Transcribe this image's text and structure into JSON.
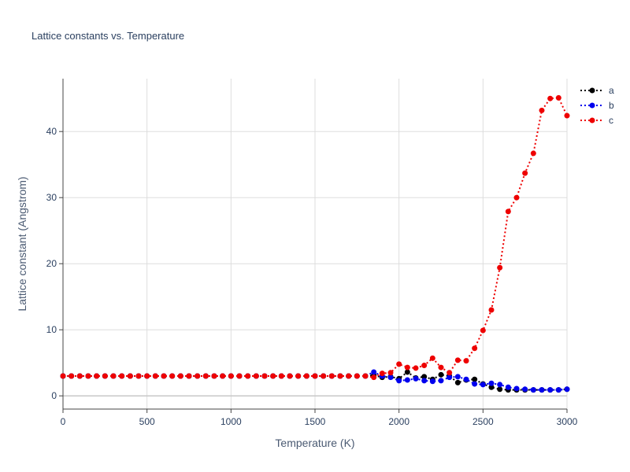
{
  "chart_data": {
    "type": "line",
    "title": "Lattice constants vs. Temperature",
    "xlabel": "Temperature (K)",
    "ylabel": "Lattice constant (Angstrom)",
    "xlim": [
      0,
      3000
    ],
    "ylim": [
      -2,
      48
    ],
    "x_ticks": [
      0,
      500,
      1000,
      1500,
      2000,
      2500,
      3000
    ],
    "x_tick_labels": [
      "0",
      "500",
      "1000",
      "1500",
      "2000",
      "2500",
      "3000"
    ],
    "y_ticks": [
      0,
      10,
      20,
      30,
      40
    ],
    "y_tick_labels": [
      "0",
      "10",
      "20",
      "30",
      "40"
    ],
    "grid": true,
    "legend_position": "top-right",
    "x": [
      0,
      50,
      100,
      150,
      200,
      250,
      300,
      350,
      400,
      450,
      500,
      550,
      600,
      650,
      700,
      750,
      800,
      850,
      900,
      950,
      1000,
      1050,
      1100,
      1150,
      1200,
      1250,
      1300,
      1350,
      1400,
      1450,
      1500,
      1550,
      1600,
      1650,
      1700,
      1750,
      1800,
      1850,
      1900,
      1950,
      2000,
      2050,
      2100,
      2150,
      2200,
      2250,
      2300,
      2350,
      2400,
      2450,
      2500,
      2550,
      2600,
      2650,
      2700,
      2750,
      2800,
      2850,
      2900,
      2950,
      3000
    ],
    "series": [
      {
        "name": "a",
        "color": "#000000",
        "values": [
          3,
          3,
          3,
          3,
          3,
          3,
          3,
          3,
          3,
          3,
          3,
          3,
          3,
          3,
          3,
          3,
          3,
          3,
          3,
          3,
          3,
          3,
          3,
          3,
          3,
          3,
          3,
          3,
          3,
          3,
          3,
          3,
          3,
          3,
          3,
          3,
          3,
          3.1,
          2.8,
          2.9,
          2.6,
          3.6,
          2.7,
          2.9,
          2.5,
          3.2,
          3.0,
          2.0,
          2.4,
          2.5,
          1.8,
          1.3,
          1.0,
          0.9,
          0.9,
          0.9,
          0.9,
          0.9,
          0.9,
          0.9,
          1.0
        ]
      },
      {
        "name": "b",
        "color": "#0000ee",
        "values": [
          3,
          3,
          3,
          3,
          3,
          3,
          3,
          3,
          3,
          3,
          3,
          3,
          3,
          3,
          3,
          3,
          3,
          3,
          3,
          3,
          3,
          3,
          3,
          3,
          3,
          3,
          3,
          3,
          3,
          3,
          3,
          3,
          3,
          3,
          3,
          3,
          3,
          3.6,
          3.0,
          2.8,
          2.3,
          2.4,
          2.6,
          2.3,
          2.2,
          2.3,
          2.8,
          2.9,
          2.5,
          1.8,
          1.7,
          1.9,
          1.7,
          1.3,
          1.1,
          1.0,
          0.9,
          0.9,
          0.9,
          0.9,
          1.0
        ]
      },
      {
        "name": "c",
        "color": "#ee0000",
        "values": [
          3,
          3,
          3,
          3,
          3,
          3,
          3,
          3,
          3,
          3,
          3,
          3,
          3,
          3,
          3,
          3,
          3,
          3,
          3,
          3,
          3,
          3,
          3,
          3,
          3,
          3,
          3,
          3,
          3,
          3,
          3,
          3,
          3,
          3,
          3,
          3,
          3,
          2.8,
          3.4,
          3.5,
          4.8,
          4.3,
          4.2,
          4.6,
          5.7,
          4.3,
          3.5,
          5.4,
          5.3,
          7.2,
          9.9,
          13.0,
          19.4,
          27.9,
          30.0,
          33.7,
          36.7,
          43.2,
          45.0,
          45.1,
          42.4
        ]
      }
    ]
  }
}
